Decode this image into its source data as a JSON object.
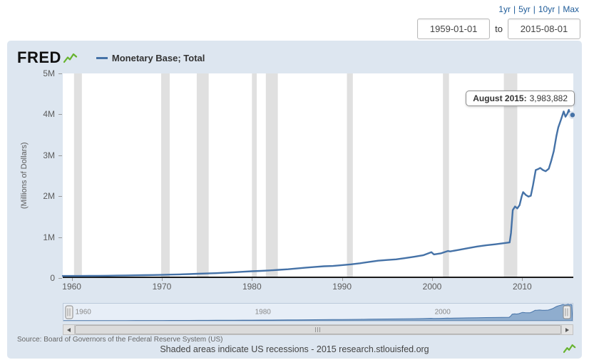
{
  "colors": {
    "accent_link": "#1f5c99",
    "panel_bg": "#dde6f0",
    "logo_green": "#67b32e"
  },
  "range_links": [
    "1yr",
    "5yr",
    "10yr",
    "Max"
  ],
  "range_links_separator": "|",
  "date_range": {
    "start": "1959-01-01",
    "separator": "to",
    "end": "2015-08-01"
  },
  "header": {
    "logo": "FRED",
    "legend_label": "Monetary Base; Total"
  },
  "tooltip": {
    "label": "August 2015:",
    "value": "3,983,882"
  },
  "chart_data": {
    "type": "line",
    "title": "Monetary Base; Total",
    "xlabel": "",
    "ylabel": "(Millions of Dollars)",
    "legend_position": "top-left",
    "grid": false,
    "line_color": "#4572a7",
    "recession_color": "#e0e0e0",
    "nav_fill": "#8fadce",
    "nav_stroke": "#4572a7",
    "xlim": [
      1959,
      2015.67
    ],
    "ylim": [
      0,
      5000000
    ],
    "x_ticks": [
      1960,
      1970,
      1980,
      1990,
      2000,
      2010
    ],
    "y_ticks": [
      {
        "value": 0,
        "label": "0"
      },
      {
        "value": 1000000,
        "label": "1M"
      },
      {
        "value": 2000000,
        "label": "2M"
      },
      {
        "value": 3000000,
        "label": "3M"
      },
      {
        "value": 4000000,
        "label": "4M"
      },
      {
        "value": 5000000,
        "label": "5M"
      }
    ],
    "recessions": [
      [
        1960.25,
        1961.12
      ],
      [
        1969.92,
        1970.87
      ],
      [
        1973.87,
        1975.2
      ],
      [
        1980.0,
        1980.54
      ],
      [
        1981.54,
        1982.87
      ],
      [
        1990.54,
        1991.2
      ],
      [
        2001.2,
        2001.87
      ],
      [
        2007.96,
        2009.45
      ]
    ],
    "series_name": "Monetary Base; Total",
    "last_point_label": "August 2015: 3,983,882",
    "points": [
      [
        1959.0,
        50600
      ],
      [
        1960,
        50500
      ],
      [
        1961,
        51000
      ],
      [
        1962,
        52000
      ],
      [
        1963,
        54000
      ],
      [
        1964,
        56500
      ],
      [
        1965,
        59000
      ],
      [
        1966,
        62000
      ],
      [
        1967,
        65500
      ],
      [
        1968,
        70000
      ],
      [
        1969,
        73500
      ],
      [
        1970,
        77500
      ],
      [
        1971,
        83000
      ],
      [
        1972,
        89000
      ],
      [
        1973,
        96000
      ],
      [
        1974,
        104000
      ],
      [
        1975,
        111000
      ],
      [
        1976,
        119000
      ],
      [
        1977,
        129000
      ],
      [
        1978,
        141000
      ],
      [
        1979,
        153000
      ],
      [
        1980,
        165000
      ],
      [
        1981,
        175000
      ],
      [
        1982,
        186000
      ],
      [
        1983,
        201000
      ],
      [
        1984,
        215000
      ],
      [
        1985,
        233000
      ],
      [
        1986,
        255000
      ],
      [
        1987,
        272000
      ],
      [
        1988,
        288000
      ],
      [
        1989,
        295000
      ],
      [
        1990,
        315000
      ],
      [
        1991,
        335000
      ],
      [
        1992,
        360000
      ],
      [
        1993,
        393000
      ],
      [
        1994,
        424000
      ],
      [
        1995,
        440000
      ],
      [
        1996,
        457000
      ],
      [
        1997,
        486000
      ],
      [
        1998,
        520000
      ],
      [
        1999,
        555000
      ],
      [
        1999.92,
        632000
      ],
      [
        2000.2,
        577000
      ],
      [
        2001,
        605000
      ],
      [
        2001.75,
        660000
      ],
      [
        2002,
        650000
      ],
      [
        2003,
        690000
      ],
      [
        2004,
        730000
      ],
      [
        2005,
        770000
      ],
      [
        2006,
        800000
      ],
      [
        2007,
        824000
      ],
      [
        2008.6,
        870000
      ],
      [
        2008.75,
        1100000
      ],
      [
        2008.95,
        1660000
      ],
      [
        2009.2,
        1750000
      ],
      [
        2009.45,
        1700000
      ],
      [
        2009.7,
        1780000
      ],
      [
        2009.95,
        2000000
      ],
      [
        2010.1,
        2100000
      ],
      [
        2010.4,
        2030000
      ],
      [
        2010.7,
        1990000
      ],
      [
        2010.95,
        2010000
      ],
      [
        2011.2,
        2270000
      ],
      [
        2011.5,
        2640000
      ],
      [
        2011.75,
        2660000
      ],
      [
        2012.0,
        2690000
      ],
      [
        2012.3,
        2640000
      ],
      [
        2012.6,
        2610000
      ],
      [
        2012.95,
        2670000
      ],
      [
        2013.2,
        2850000
      ],
      [
        2013.5,
        3100000
      ],
      [
        2013.8,
        3480000
      ],
      [
        2014.0,
        3680000
      ],
      [
        2014.3,
        3870000
      ],
      [
        2014.6,
        4070000
      ],
      [
        2014.8,
        3940000
      ],
      [
        2015.0,
        4010000
      ],
      [
        2015.17,
        4110000
      ],
      [
        2015.33,
        3990000
      ],
      [
        2015.5,
        4060000
      ],
      [
        2015.58,
        3983882
      ]
    ]
  },
  "navigator": {
    "year_labels": [
      1960,
      1980,
      2000
    ]
  },
  "footer": {
    "source": "Source: Board of Governors of the Federal Reserve System (US)",
    "note": "Shaded areas indicate US recessions - 2015 research.stlouisfed.org"
  }
}
